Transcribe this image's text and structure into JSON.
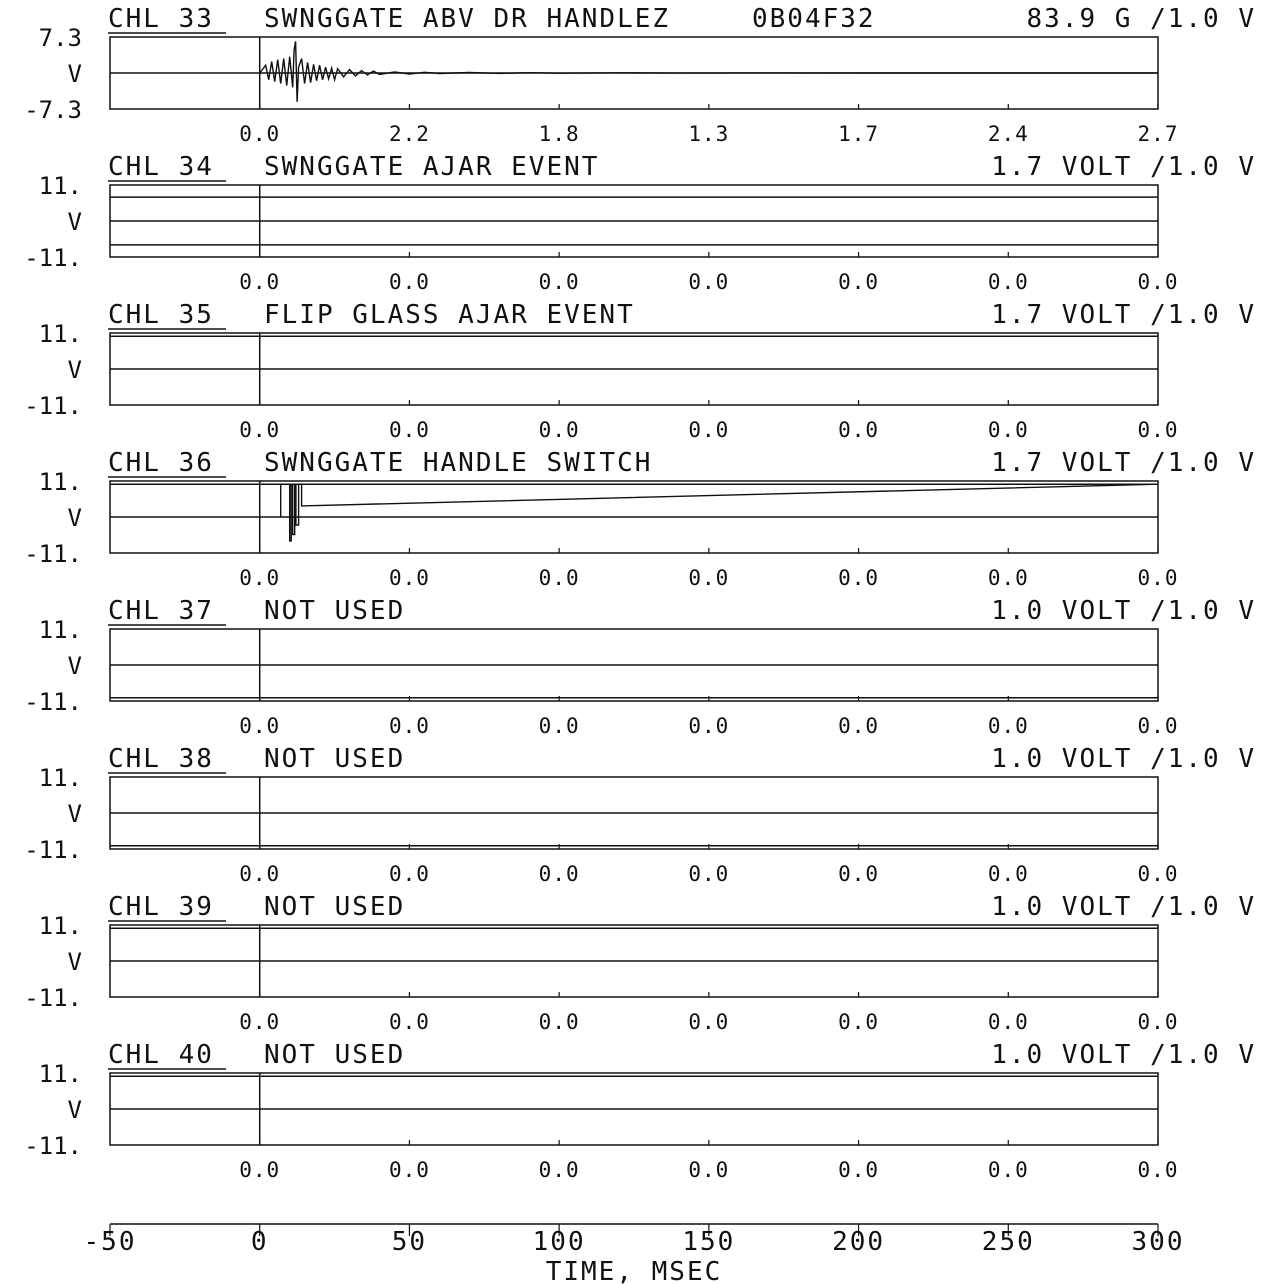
{
  "chart_data": {
    "type": "line",
    "title": "",
    "xlabel": "TIME, MSEC",
    "xlim": [
      -50,
      300
    ],
    "x_ticks": [
      "-50",
      "0",
      "50",
      "100",
      "150",
      "200",
      "250",
      "300"
    ],
    "grid": false,
    "channels": [
      {
        "channel": "CHL 33",
        "name": "SWNGGATE ABV DR HANDLEZ",
        "id": "0B04F32",
        "scale": "83.9 G /1.0 V",
        "y_top": "7.3",
        "y_unit": "V",
        "y_bottom": "-7.3",
        "ylim": [
          -7.3,
          7.3
        ],
        "stats": [
          "0.0",
          "2.2",
          "1.8",
          "1.3",
          "1.7",
          "2.4",
          "2.7"
        ],
        "trace": {
          "x": [
            0,
            2,
            3,
            4,
            5,
            6,
            7,
            8,
            9,
            10,
            11,
            11.5,
            12,
            12.5,
            13,
            14,
            15,
            16,
            17,
            18,
            19,
            20,
            21,
            22,
            23,
            24,
            25,
            26,
            28,
            30,
            32,
            34,
            36,
            38,
            40,
            45,
            50,
            55,
            60,
            70,
            80,
            90,
            100,
            120,
            140,
            160,
            200,
            250,
            300
          ],
          "y": [
            0,
            1.6,
            -1.4,
            2.4,
            -1.8,
            2.8,
            -2.2,
            3.0,
            -2.6,
            3.4,
            -3.0,
            4.8,
            6.6,
            -6.0,
            1.2,
            3.0,
            -2.2,
            2.2,
            -2.0,
            1.8,
            -1.6,
            1.6,
            -1.4,
            1.2,
            -1.2,
            1.0,
            -1.4,
            0.9,
            -0.8,
            0.7,
            -0.6,
            0.5,
            -0.4,
            0.4,
            -0.3,
            0.2,
            -0.2,
            0.15,
            -0.1,
            0.1,
            -0.08,
            0.06,
            -0.05,
            0.04,
            -0.03,
            0.02,
            0,
            0,
            0
          ]
        }
      },
      {
        "channel": "CHL 34",
        "name": "SWNGGATE AJAR EVENT",
        "scale": "1.7 VOLT /1.0 V",
        "y_top": "11.",
        "y_unit": "V",
        "y_bottom": "-11.",
        "ylim": [
          -11,
          11
        ],
        "stats": [
          "0.0",
          "0.0",
          "0.0",
          "0.0",
          "0.0",
          "0.0",
          "0.0"
        ],
        "levels": [
          7.5,
          0,
          -7.5
        ]
      },
      {
        "channel": "CHL 35",
        "name": "FLIP GLASS AJAR EVENT",
        "scale": "1.7 VOLT /1.0 V",
        "y_top": "11.",
        "y_unit": "V",
        "y_bottom": "-11.",
        "ylim": [
          -11,
          11
        ],
        "stats": [
          "0.0",
          "0.0",
          "0.0",
          "0.0",
          "0.0",
          "0.0",
          "0.0"
        ],
        "levels": [
          10.3,
          0
        ]
      },
      {
        "channel": "CHL 36",
        "name": "SWNGGATE HANDLE SWITCH",
        "scale": "1.7 VOLT /1.0 V",
        "y_top": "11.",
        "y_unit": "V",
        "y_bottom": "-11.",
        "ylim": [
          -11,
          11
        ],
        "stats": [
          "0.0",
          "0.0",
          "0.0",
          "0.0",
          "0.0",
          "0.0",
          "0.0"
        ],
        "levels": [
          10.3,
          0
        ],
        "trace": {
          "x": [
            0,
            7,
            7,
            7,
            10,
            10,
            10.5,
            10.5,
            11,
            11,
            11.7,
            11.7,
            12.1,
            12.1,
            13,
            13,
            14,
            14,
            300
          ],
          "y": [
            10.3,
            10.3,
            0,
            10.3,
            10.3,
            -7.5,
            -7.5,
            10.3,
            10.3,
            -5.5,
            -5.5,
            10.3,
            10.3,
            -2.5,
            -2.5,
            10.3,
            10.3,
            3.5,
            10.3
          ]
        }
      },
      {
        "channel": "CHL 37",
        "name": "NOT USED",
        "scale": "1.0 VOLT /1.0 V",
        "y_top": "11.",
        "y_unit": "V",
        "y_bottom": "-11.",
        "ylim": [
          -11,
          11
        ],
        "stats": [
          "0.0",
          "0.0",
          "0.0",
          "0.0",
          "0.0",
          "0.0",
          "0.0"
        ],
        "levels": [
          0,
          -10.3
        ]
      },
      {
        "channel": "CHL 38",
        "name": "NOT USED",
        "scale": "1.0 VOLT /1.0 V",
        "y_top": "11.",
        "y_unit": "V",
        "y_bottom": "-11.",
        "ylim": [
          -11,
          11
        ],
        "stats": [
          "0.0",
          "0.0",
          "0.0",
          "0.0",
          "0.0",
          "0.0",
          "0.0"
        ],
        "levels": [
          0,
          -10.3
        ]
      },
      {
        "channel": "CHL 39",
        "name": "NOT USED",
        "scale": "1.0 VOLT /1.0 V",
        "y_top": "11.",
        "y_unit": "V",
        "y_bottom": "-11.",
        "ylim": [
          -11,
          11
        ],
        "stats": [
          "0.0",
          "0.0",
          "0.0",
          "0.0",
          "0.0",
          "0.0",
          "0.0"
        ],
        "levels": [
          10.3,
          0
        ]
      },
      {
        "channel": "CHL 40",
        "name": "NOT USED",
        "scale": "1.0 VOLT /1.0 V",
        "y_top": "11.",
        "y_unit": "V",
        "y_bottom": "-11.",
        "ylim": [
          -11,
          11
        ],
        "stats": [
          "0.0",
          "0.0",
          "0.0",
          "0.0",
          "0.0",
          "0.0",
          "0.0"
        ],
        "levels": [
          10.3,
          0
        ]
      }
    ]
  }
}
